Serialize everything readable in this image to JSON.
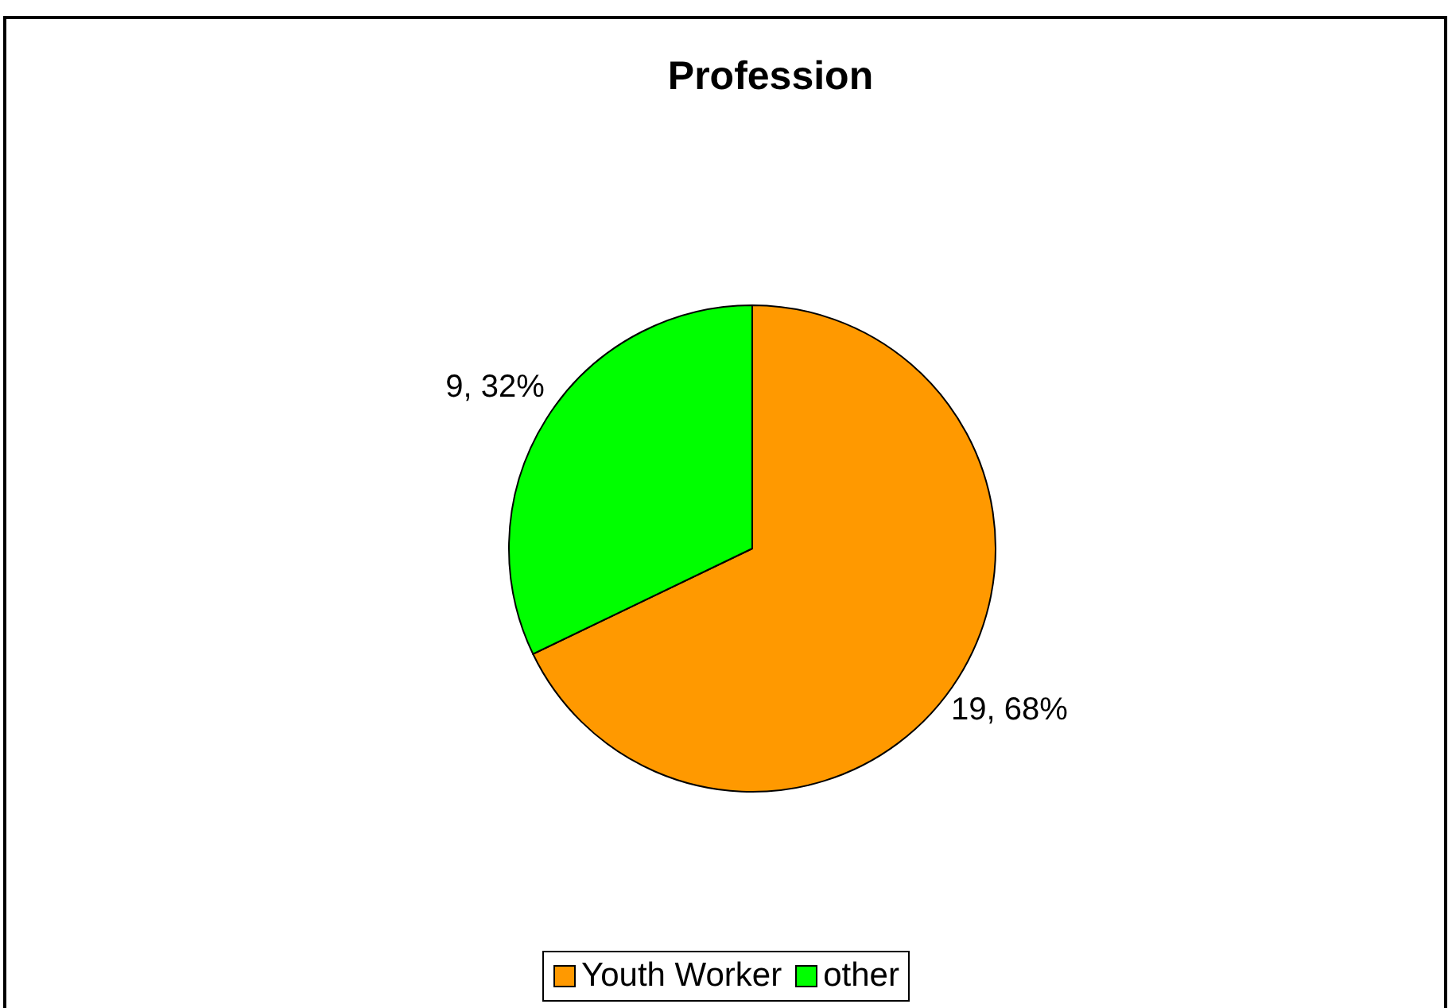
{
  "chart_data": {
    "type": "pie",
    "title": "Profession",
    "categories": [
      "Youth Worker",
      "other"
    ],
    "values": [
      19,
      9
    ],
    "colors": [
      "#ff9900",
      "#00ff00"
    ],
    "value_labels": [
      "19, 68%",
      "9, 32%"
    ],
    "legend": "bottom"
  }
}
